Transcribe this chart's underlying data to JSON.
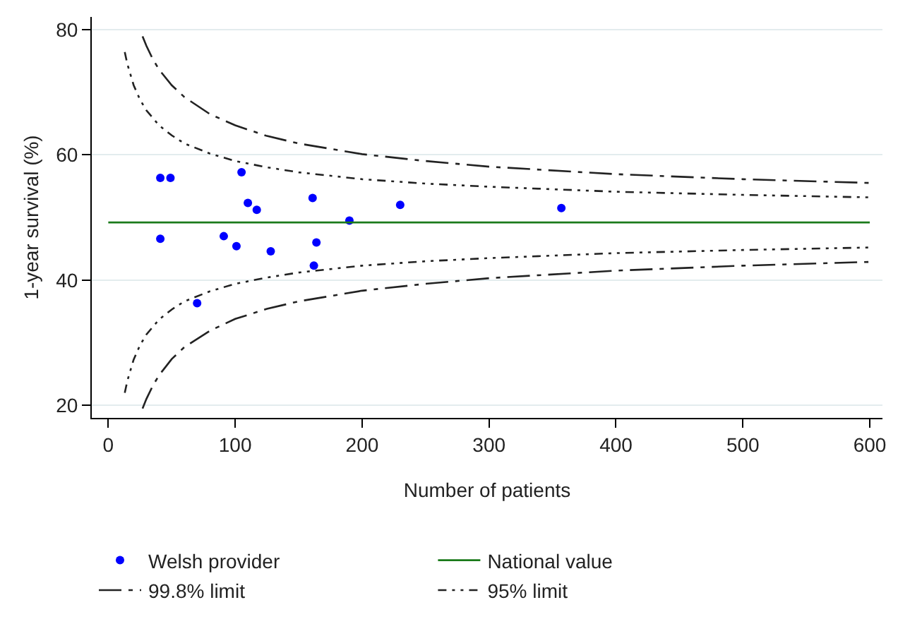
{
  "chart_data": {
    "type": "scatter",
    "xlabel": "Number of patients",
    "ylabel": "1-year survival (%)",
    "xlim": [
      -13,
      610
    ],
    "xticks": [
      0,
      100,
      200,
      300,
      400,
      500,
      600
    ],
    "ylim": [
      18,
      82
    ],
    "yticks": [
      20,
      40,
      60,
      80
    ],
    "grid": "y",
    "legend": "bottom",
    "series": [
      {
        "name": "Welsh provider",
        "marker": "circle",
        "color": "#0000ff",
        "x": [
          41,
          49,
          105,
          110,
          117,
          161,
          190,
          41,
          91,
          101,
          128,
          164,
          162,
          70,
          230,
          357
        ],
        "values": [
          56.3,
          56.3,
          57.2,
          52.3,
          51.2,
          53.1,
          49.5,
          46.6,
          47.0,
          45.4,
          44.6,
          46.0,
          42.3,
          36.3,
          52.0,
          51.5
        ]
      },
      {
        "name": "National value",
        "type": "line",
        "marker": "none",
        "line_style": "solid",
        "color": "#1a7a1a",
        "x": [
          0,
          600
        ],
        "values": [
          49.2,
          49.2
        ]
      },
      {
        "name": "99.8% limit",
        "type": "line",
        "marker": "none",
        "line_style": "dashed",
        "color": "#222222",
        "x": [
          27,
          30,
          35,
          40,
          50,
          60,
          80,
          100,
          125,
          150,
          200,
          250,
          300,
          400,
          500,
          600,
          null,
          27,
          30,
          35,
          40,
          50,
          60,
          80,
          100,
          125,
          150,
          200,
          250,
          300,
          400,
          500,
          600
        ],
        "values": [
          78.9,
          77.4,
          75.3,
          73.6,
          71.1,
          69.2,
          66.5,
          64.7,
          63.0,
          61.8,
          60.1,
          59.0,
          58.1,
          56.9,
          56.1,
          55.5,
          null,
          19.5,
          21.0,
          23.1,
          24.8,
          27.4,
          29.3,
          31.9,
          33.8,
          35.4,
          36.6,
          38.3,
          39.4,
          40.3,
          41.5,
          42.3,
          42.9
        ]
      },
      {
        "name": "95% limit",
        "type": "line",
        "marker": "none",
        "line_style": "dotted",
        "color": "#222222",
        "x": [
          13,
          15,
          20,
          25,
          30,
          40,
          50,
          60,
          80,
          100,
          125,
          150,
          200,
          250,
          300,
          400,
          500,
          600,
          null,
          13,
          15,
          20,
          25,
          30,
          40,
          50,
          60,
          80,
          100,
          125,
          150,
          200,
          250,
          300,
          400,
          500,
          600
        ],
        "values": [
          76.4,
          74.5,
          71.1,
          68.8,
          67.1,
          64.7,
          63.1,
          61.8,
          60.2,
          59.0,
          58.0,
          57.2,
          56.1,
          55.4,
          54.9,
          54.1,
          53.6,
          53.2,
          null,
          22.0,
          23.9,
          27.3,
          29.6,
          31.3,
          33.7,
          35.3,
          36.6,
          38.2,
          39.4,
          40.4,
          41.2,
          42.3,
          43.0,
          43.5,
          44.3,
          44.8,
          45.2
        ]
      }
    ]
  }
}
